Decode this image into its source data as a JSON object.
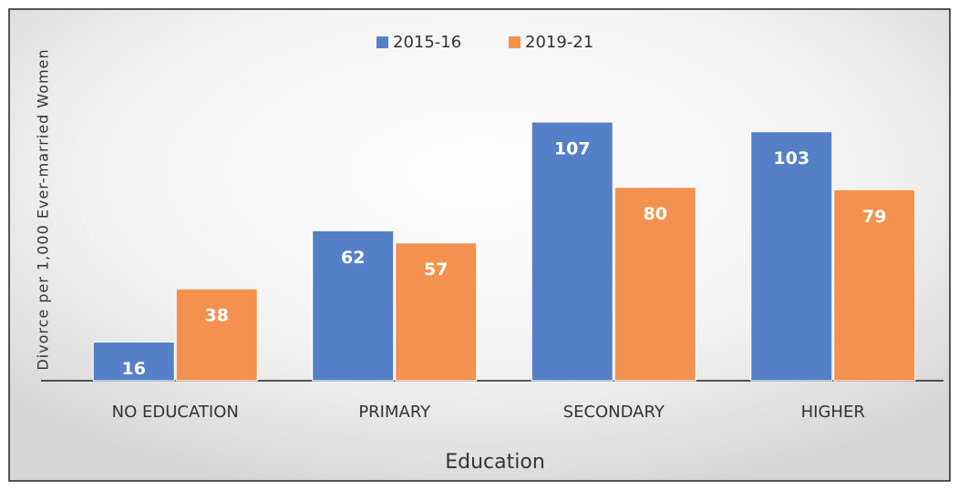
{
  "chart_data": {
    "type": "bar",
    "x_label": "Education",
    "y_label": "Divorce per 1,000 Ever-married Women",
    "categories": [
      "NO EDUCATION",
      "PRIMARY",
      "SECONDARY",
      "HIGHER"
    ],
    "series": [
      {
        "name": "2015-16",
        "color": "#5580c8",
        "values": [
          16,
          62,
          107,
          103
        ]
      },
      {
        "name": "2019-21",
        "color": "#f4914f",
        "values": [
          38,
          57,
          80,
          79
        ]
      }
    ],
    "legend": "top"
  }
}
